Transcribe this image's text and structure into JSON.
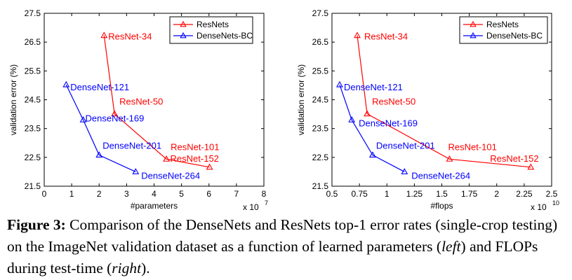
{
  "chart_data": [
    {
      "type": "line",
      "xlabel": "#parameters",
      "ylabel": "validation error (%)",
      "x_multiplier": "x 10",
      "x_multiplier_exp": "7",
      "xlim": [
        0,
        8
      ],
      "ylim": [
        21.5,
        27.5
      ],
      "xticks": [
        0,
        1,
        2,
        3,
        4,
        5,
        6,
        7,
        8
      ],
      "xtick_labels": [
        "0",
        "1",
        "2",
        "3",
        "4",
        "5",
        "6",
        "7",
        "8"
      ],
      "yticks": [
        21.5,
        22.5,
        23.5,
        24.5,
        25.5,
        26.5,
        27.5
      ],
      "ytick_labels": [
        "21.5",
        "22.5",
        "23.5",
        "24.5",
        "25.5",
        "26.5",
        "27.5"
      ],
      "grid": false,
      "legend_position": "top-right",
      "series": [
        {
          "name": "ResNets",
          "color": "#ff0000",
          "marker": "triangle",
          "points": [
            {
              "x": 2.18,
              "y": 26.73,
              "label": "ResNet-34"
            },
            {
              "x": 2.56,
              "y": 24.01,
              "label": "ResNet-50"
            },
            {
              "x": 4.45,
              "y": 22.44,
              "label": "ResNet-101"
            },
            {
              "x": 6.02,
              "y": 22.16,
              "label": "ResNet-152"
            }
          ]
        },
        {
          "name": "DenseNets-BC",
          "color": "#0000ff",
          "marker": "triangle",
          "points": [
            {
              "x": 0.8,
              "y": 25.02,
              "label": "DenseNet-121"
            },
            {
              "x": 1.42,
              "y": 23.8,
              "label": "DenseNet-169"
            },
            {
              "x": 2.0,
              "y": 22.58,
              "label": "DenseNet-201"
            },
            {
              "x": 3.33,
              "y": 22.0,
              "label": "DenseNet-264"
            }
          ]
        }
      ]
    },
    {
      "type": "line",
      "xlabel": "#flops",
      "ylabel": "validation error (%)",
      "x_multiplier": "x 10",
      "x_multiplier_exp": "10",
      "xlim": [
        0.5,
        2.5
      ],
      "ylim": [
        21.5,
        27.5
      ],
      "xticks": [
        0.5,
        0.75,
        1.0,
        1.25,
        1.5,
        1.75,
        2.0,
        2.25,
        2.5
      ],
      "xtick_labels": [
        "0.5",
        "0.75",
        "1",
        "1.25",
        "1.5",
        "1.75",
        "2",
        "2.25",
        "2.5"
      ],
      "yticks": [
        21.5,
        22.5,
        23.5,
        24.5,
        25.5,
        26.5,
        27.5
      ],
      "ytick_labels": [
        "21.5",
        "22.5",
        "23.5",
        "24.5",
        "25.5",
        "26.5",
        "27.5"
      ],
      "grid": false,
      "legend_position": "top-right",
      "series": [
        {
          "name": "ResNets",
          "color": "#ff0000",
          "marker": "triangle",
          "points": [
            {
              "x": 0.73,
              "y": 26.73,
              "label": "ResNet-34"
            },
            {
              "x": 0.82,
              "y": 24.01,
              "label": "ResNet-50"
            },
            {
              "x": 1.57,
              "y": 22.44,
              "label": "ResNet-101"
            },
            {
              "x": 2.31,
              "y": 22.16,
              "label": "ResNet-152"
            }
          ]
        },
        {
          "name": "DenseNets-BC",
          "color": "#0000ff",
          "marker": "triangle",
          "points": [
            {
              "x": 0.57,
              "y": 25.02,
              "label": "DenseNet-121"
            },
            {
              "x": 0.68,
              "y": 23.8,
              "label": "DenseNet-169"
            },
            {
              "x": 0.87,
              "y": 22.58,
              "label": "DenseNet-201"
            },
            {
              "x": 1.16,
              "y": 22.0,
              "label": "DenseNet-264"
            }
          ]
        }
      ]
    }
  ],
  "caption": {
    "label": "Figure 3:",
    "text_1": " Comparison of the DenseNets and ResNets top-1 error rates (single-crop testing) on the ImageNet validation dataset as a function of learned parameters (",
    "italic_1": "left",
    "text_2": ") and FLOPs during test-time (",
    "italic_2": "right",
    "text_3": ")."
  }
}
